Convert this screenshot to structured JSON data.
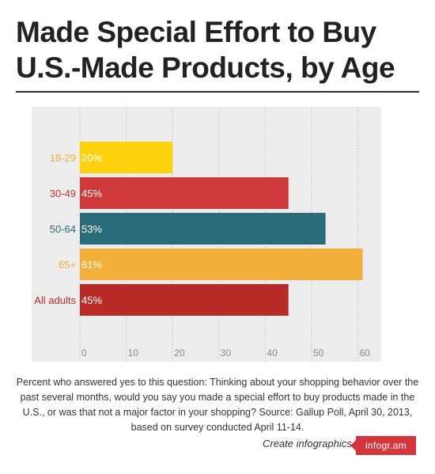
{
  "title": "Made Special Effort to Buy U.S.-Made Products, by Age",
  "note": "Percent who answered yes to this question: Thinking about your shopping behavior over the past several months, would you say you made a special effort to buy products made in the U.S., or was that not a major factor in your shopping? Source: Gallup Poll, April 30, 2013, based on survey conducted April 11-14.",
  "credit": "Create infographics",
  "brand": "infogr.am",
  "chart_data": {
    "type": "bar",
    "orientation": "horizontal",
    "title": "Made Special Effort to Buy U.S.-Made Products, by Age",
    "categories": [
      "18-29",
      "30-49",
      "50-64",
      "65+",
      "All adults"
    ],
    "values": [
      20,
      45,
      53,
      61,
      45
    ],
    "value_labels": [
      "20%",
      "45%",
      "53%",
      "61%",
      "45%"
    ],
    "colors": [
      "#fcd20c",
      "#d0393b",
      "#296b79",
      "#f2b03a",
      "#b92b27"
    ],
    "category_label_colors": [
      "#f2b03a",
      "#c0392b",
      "#296b79",
      "#f2b03a",
      "#b92b27"
    ],
    "xlim": [
      0,
      65
    ],
    "xticks": [
      0,
      10,
      20,
      30,
      40,
      50,
      60
    ],
    "xlabel": "",
    "ylabel": "",
    "grid": true,
    "background": "#ececec"
  }
}
